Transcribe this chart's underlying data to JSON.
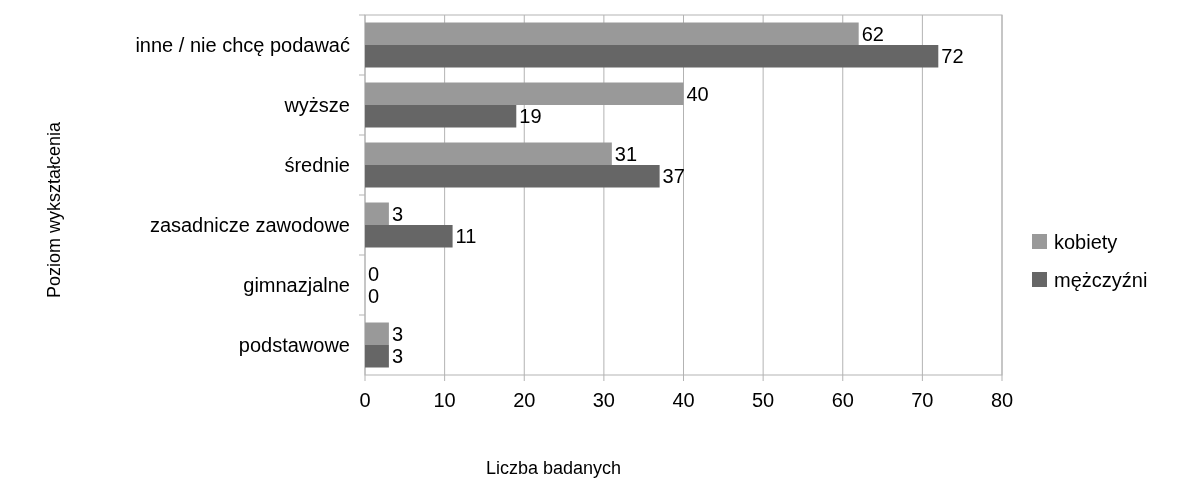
{
  "chart_data": {
    "type": "bar",
    "orientation": "horizontal",
    "xlabel": "Liczba badanych",
    "ylabel": "Poziom wykształcenia",
    "categories": [
      "inne / nie chcę podawać",
      "wyższe",
      "średnie",
      "zasadnicze zawodowe",
      "gimnazjalne",
      "podstawowe"
    ],
    "series": [
      {
        "name": "kobiety",
        "color": "#999999",
        "values": [
          62,
          40,
          31,
          3,
          0,
          3
        ]
      },
      {
        "name": "mężczyźni",
        "color": "#666666",
        "values": [
          72,
          19,
          37,
          11,
          0,
          3
        ]
      }
    ],
    "xlim": [
      0,
      80
    ],
    "xticks": [
      0,
      10,
      20,
      30,
      40,
      50,
      60,
      70,
      80
    ],
    "grid": "x",
    "legend": "right",
    "data_labels": true
  }
}
